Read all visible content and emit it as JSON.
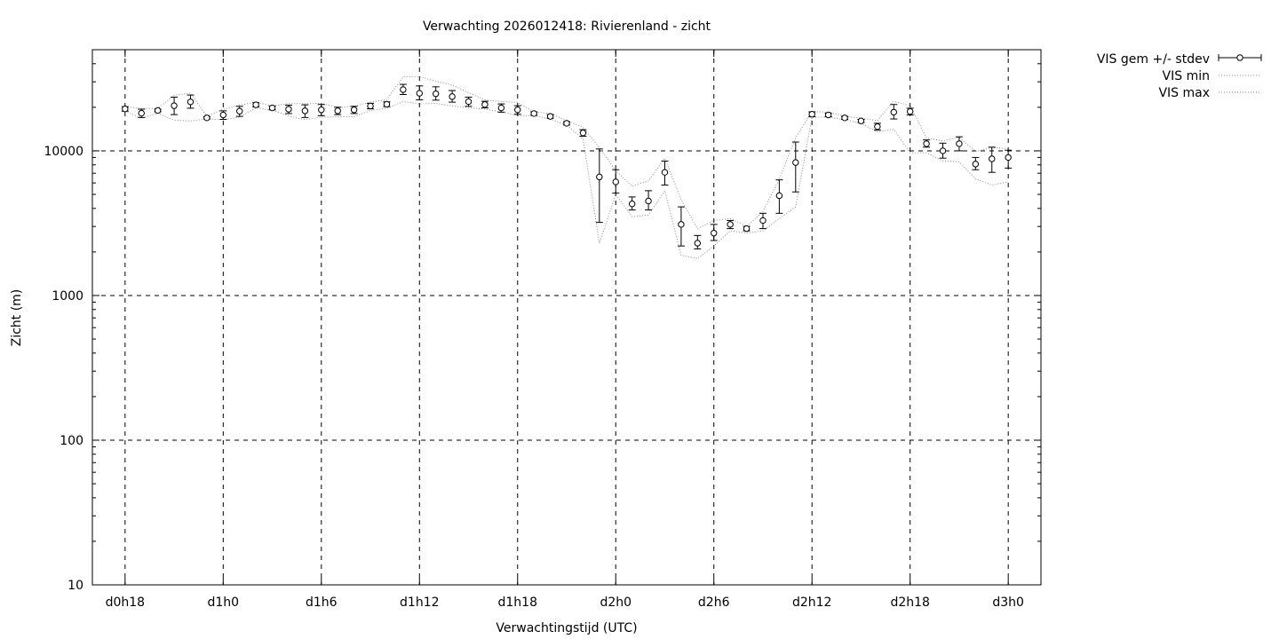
{
  "chart_data": {
    "type": "scatter",
    "title": "Verwachting 2026012418: Rivierenland - zicht",
    "xlabel": "Verwachtingstijd (UTC)",
    "ylabel": "Zicht (m)",
    "y_scale": "log",
    "ylim": [
      10,
      50000
    ],
    "xlim": [
      -2,
      56
    ],
    "grid": true,
    "legend_position": "outside-top-right",
    "x_ticks": [
      {
        "x": 0,
        "label": "d0h18"
      },
      {
        "x": 6,
        "label": "d1h0"
      },
      {
        "x": 12,
        "label": "d1h6"
      },
      {
        "x": 18,
        "label": "d1h12"
      },
      {
        "x": 24,
        "label": "d1h18"
      },
      {
        "x": 30,
        "label": "d2h0"
      },
      {
        "x": 36,
        "label": "d2h6"
      },
      {
        "x": 42,
        "label": "d2h12"
      },
      {
        "x": 48,
        "label": "d2h18"
      },
      {
        "x": 54,
        "label": "d3h0"
      }
    ],
    "y_ticks": [
      {
        "y": 10,
        "label": "10"
      },
      {
        "y": 100,
        "label": "100"
      },
      {
        "y": 1000,
        "label": "1000"
      },
      {
        "y": 10000,
        "label": "10000"
      }
    ],
    "x": [
      0,
      1,
      2,
      3,
      4,
      5,
      6,
      7,
      8,
      9,
      10,
      11,
      12,
      13,
      14,
      15,
      16,
      17,
      18,
      19,
      20,
      21,
      22,
      23,
      24,
      25,
      26,
      27,
      28,
      29,
      30,
      31,
      32,
      33,
      34,
      35,
      36,
      37,
      38,
      39,
      40,
      41,
      42,
      43,
      44,
      45,
      46,
      47,
      48,
      49,
      50,
      51,
      52,
      53,
      54
    ],
    "series": [
      {
        "name": "VIS gem +/- stdev",
        "style": "points-errorbars",
        "mean": [
          19500,
          18200,
          19000,
          20500,
          21800,
          16900,
          17700,
          18800,
          20800,
          19800,
          19400,
          18900,
          19200,
          18900,
          19200,
          20400,
          21000,
          26500,
          25000,
          24800,
          23700,
          21900,
          20900,
          19800,
          19200,
          18100,
          17300,
          15500,
          13300,
          6600,
          6100,
          4300,
          4500,
          7100,
          3100,
          2300,
          2700,
          3100,
          2900,
          3300,
          4900,
          8300,
          17900,
          17700,
          16900,
          16100,
          14700,
          18500,
          18700,
          11200,
          10000,
          11200,
          8100,
          8800,
          9000
        ],
        "low": [
          18800,
          17000,
          18600,
          17800,
          19700,
          16600,
          16500,
          17300,
          20100,
          19200,
          18100,
          17000,
          17500,
          17800,
          18100,
          19500,
          20200,
          24500,
          22500,
          22400,
          21700,
          20300,
          19800,
          18500,
          17900,
          17600,
          16800,
          15100,
          12600,
          3200,
          5100,
          3900,
          3900,
          5800,
          2200,
          2100,
          2400,
          2900,
          2800,
          2900,
          3700,
          5200,
          17200,
          17200,
          16500,
          15700,
          13900,
          16600,
          17700,
          10600,
          8900,
          10000,
          7400,
          7100,
          7600
        ],
        "high": [
          20200,
          19400,
          19400,
          23500,
          24300,
          17200,
          18900,
          20300,
          21500,
          20400,
          20700,
          20800,
          20900,
          20000,
          20300,
          21300,
          21800,
          28800,
          28100,
          27700,
          26100,
          23500,
          22000,
          21100,
          20500,
          18600,
          17800,
          15900,
          14000,
          10300,
          7400,
          4800,
          5300,
          8500,
          4100,
          2600,
          3100,
          3300,
          3000,
          3700,
          6300,
          11500,
          18600,
          18200,
          17300,
          16500,
          15500,
          20900,
          19700,
          11900,
          11300,
          12500,
          9000,
          10600,
          10100
        ]
      },
      {
        "name": "VIS min",
        "style": "dotted",
        "values": [
          18800,
          16800,
          18200,
          16300,
          16100,
          16600,
          16400,
          17100,
          19800,
          19100,
          17400,
          16400,
          17100,
          17200,
          17200,
          19000,
          19700,
          21900,
          21100,
          21300,
          20400,
          19900,
          19400,
          18600,
          17500,
          17500,
          16600,
          15000,
          12100,
          2300,
          5000,
          3500,
          3600,
          5300,
          1900,
          1800,
          2200,
          2800,
          2700,
          2800,
          3400,
          4100,
          17100,
          17100,
          16400,
          15500,
          13500,
          14100,
          9700,
          9700,
          8500,
          8400,
          6400,
          5800,
          6100
        ]
      },
      {
        "name": "VIS max",
        "style": "dotted",
        "values": [
          20200,
          19600,
          19600,
          24200,
          25100,
          17300,
          19400,
          20700,
          21700,
          20400,
          21200,
          21200,
          21300,
          20000,
          20300,
          21700,
          22600,
          32500,
          32600,
          30200,
          28500,
          25200,
          22500,
          21900,
          21600,
          18600,
          18100,
          16200,
          14500,
          10500,
          7300,
          5700,
          6200,
          8900,
          4600,
          2900,
          3300,
          3400,
          3000,
          3800,
          6400,
          12300,
          18700,
          18500,
          17400,
          16800,
          16200,
          22000,
          20500,
          12300,
          11700,
          12400,
          9900,
          10500,
          10400
        ]
      }
    ],
    "legend": [
      {
        "label": "VIS gem +/- stdev"
      },
      {
        "label": "VIS min"
      },
      {
        "label": "VIS max"
      }
    ]
  }
}
